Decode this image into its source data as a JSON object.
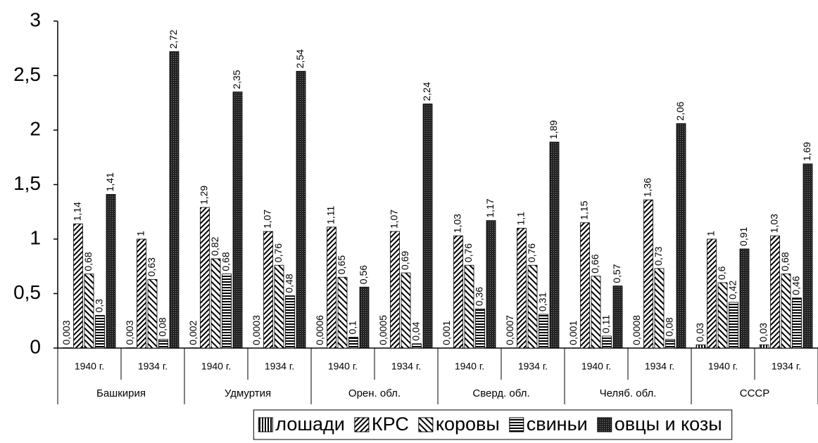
{
  "chart_data": {
    "type": "bar",
    "categories": [
      "1940 г.",
      "1934 г.",
      "1940 г.",
      "1934 г.",
      "1940 г.",
      "1934 г.",
      "1940 г.",
      "1934 г.",
      "1940 г.",
      "1934 г.",
      "1940 г.",
      "1934 г."
    ],
    "groups": [
      "Башкирия",
      "Удмуртия",
      "Орен. обл.",
      "Сверд. обл.",
      "Челяб. обл.",
      "СССР"
    ],
    "ylim": [
      0,
      3
    ],
    "yticks": [
      0,
      {
        "value": 0.5,
        "label": "0,5"
      },
      1,
      {
        "value": 1.5,
        "label": "1,5"
      },
      2,
      {
        "value": 2.5,
        "label": "2,5"
      },
      3
    ],
    "legend": "bottom",
    "series": [
      {
        "name": "лошади",
        "color": "#000",
        "pattern": "vertical",
        "values": [
          0.003,
          0.003,
          0.002,
          0.0003,
          0.0006,
          0.0005,
          0.001,
          0.0007,
          0.001,
          0.0008,
          0.03,
          0.03
        ],
        "value_labels": [
          "0,003",
          "0,003",
          "0,002",
          "0,0003",
          "0,0006",
          "0,0005",
          "0,001",
          "0,0007",
          "0,001",
          "0,0008",
          "0,03",
          "0,03"
        ]
      },
      {
        "name": "КРС",
        "color": "#000",
        "pattern": "diagonal",
        "values": [
          1.14,
          1,
          1.29,
          1.07,
          1.11,
          1.07,
          1.03,
          1.1,
          1.15,
          1.36,
          1,
          1.03
        ],
        "value_labels": [
          "1,14",
          "1",
          "1,29",
          "1,07",
          "1,11",
          "1,07",
          "1,03",
          "1,1",
          "1,15",
          "1,36",
          "1",
          "1,03"
        ]
      },
      {
        "name": "коровы",
        "color": "#000",
        "pattern": "diagonal-wide",
        "values": [
          0.68,
          0.63,
          0.82,
          0.76,
          0.65,
          0.69,
          0.76,
          0.76,
          0.66,
          0.73,
          0.6,
          0.68
        ],
        "value_labels": [
          "0,68",
          "0,63",
          "0,82",
          "0,76",
          "0,65",
          "0,69",
          "0,76",
          "0,76",
          "0,66",
          "0,73",
          "0,6",
          "0,68"
        ]
      },
      {
        "name": "свиньи",
        "color": "#000",
        "pattern": "horizontal",
        "values": [
          0.3,
          0.08,
          0.68,
          0.48,
          0.1,
          0.04,
          0.36,
          0.31,
          0.11,
          0.08,
          0.42,
          0.46
        ],
        "value_labels": [
          "0,3",
          "0,08",
          "0,68",
          "0,48",
          "0,1",
          "0,04",
          "0,36",
          "0,31",
          "0,11",
          "0,08",
          "0,42",
          "0,46"
        ]
      },
      {
        "name": "овцы и козы",
        "color": "#000",
        "pattern": "dense",
        "values": [
          1.41,
          2.72,
          2.35,
          2.54,
          0.56,
          2.24,
          1.17,
          1.89,
          0.57,
          2.06,
          0.91,
          1.69
        ],
        "value_labels": [
          "1,41",
          "2,72",
          "2,35",
          "2,54",
          "0,56",
          "2,24",
          "1,17",
          "1,89",
          "0,57",
          "2,06",
          "0,91",
          "1,69"
        ]
      }
    ]
  }
}
